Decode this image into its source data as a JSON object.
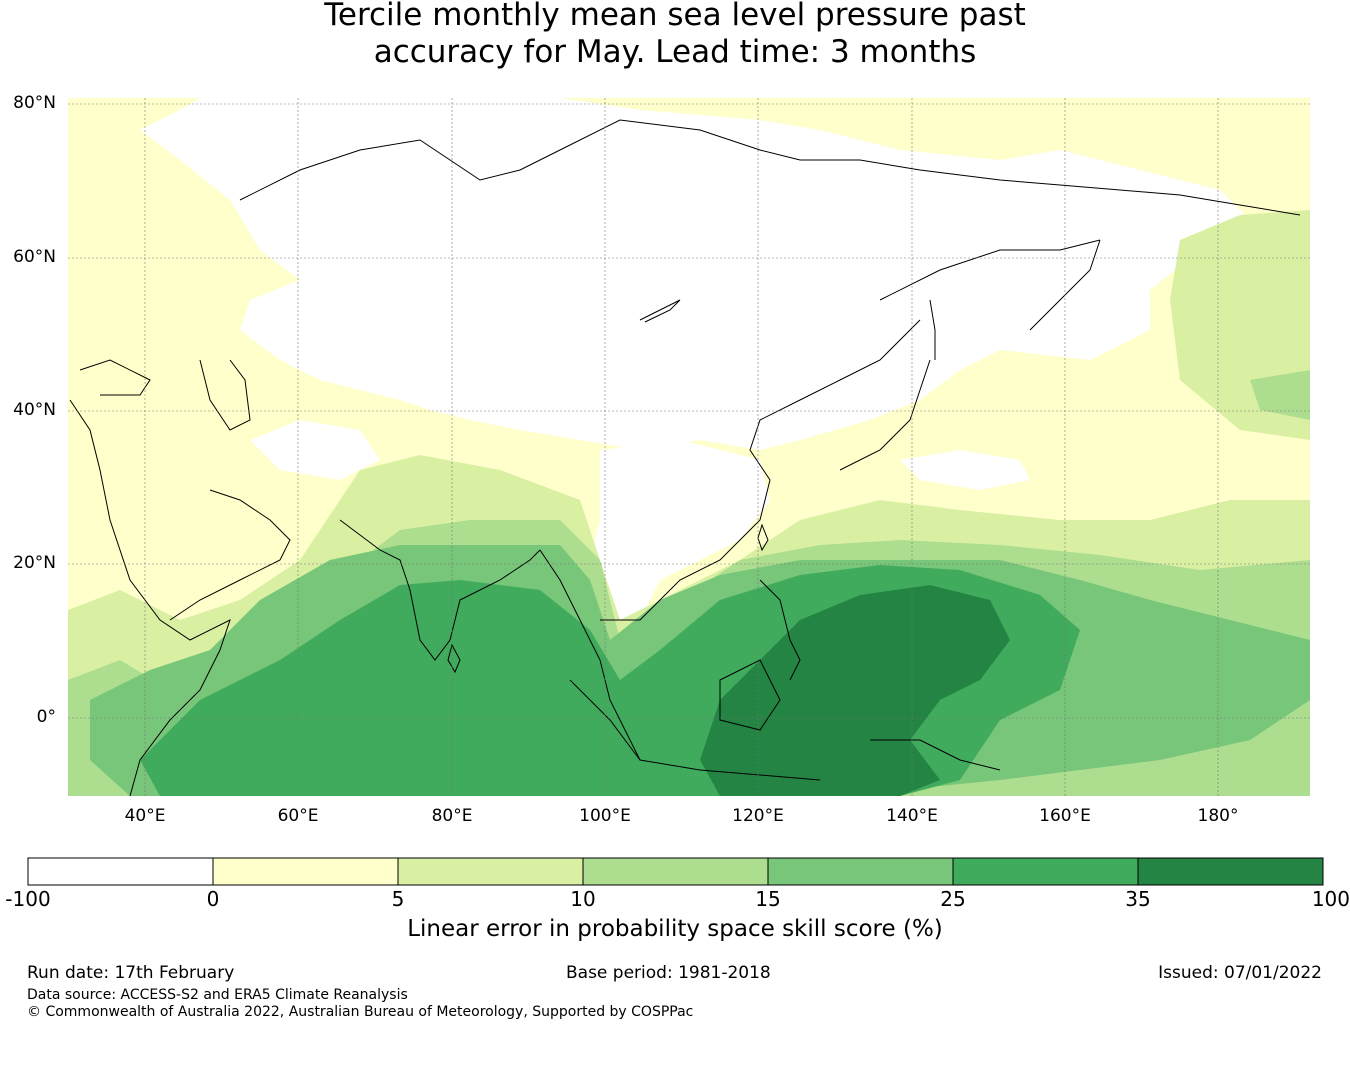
{
  "title": {
    "line1": "Tercile monthly mean sea level pressure past",
    "line2": "accuracy for May. Lead time: 3 months"
  },
  "map": {
    "lat_labels": [
      "80°N",
      "60°N",
      "40°N",
      "20°N",
      "0°"
    ],
    "lon_labels": [
      "40°E",
      "60°E",
      "80°E",
      "100°E",
      "120°E",
      "140°E",
      "160°E",
      "180°"
    ],
    "extent": {
      "lon_min": 30,
      "lon_max": 192,
      "lat_min": -10,
      "lat_max": 81
    }
  },
  "colorbar": {
    "tick_labels": [
      "-100",
      "0",
      "5",
      "10",
      "15",
      "25",
      "35",
      "100"
    ],
    "colors": [
      "#ffffff",
      "#ffffcc",
      "#d9f0a3",
      "#addd8e",
      "#78c679",
      "#41ab5d",
      "#238443"
    ],
    "title": "Linear error in probability space skill score (%)"
  },
  "footer": {
    "run_date": "Run date: 17th February",
    "base_period": "Base period: 1981-2018",
    "issued": "Issued: 07/01/2022",
    "data_source": "Data source: ACCESS-S2 and ERA5 Climate Reanalysis",
    "copyright": "© Commonwealth of Australia 2022, Australian Bureau of Meteorology, Supported by COSPPac"
  }
}
